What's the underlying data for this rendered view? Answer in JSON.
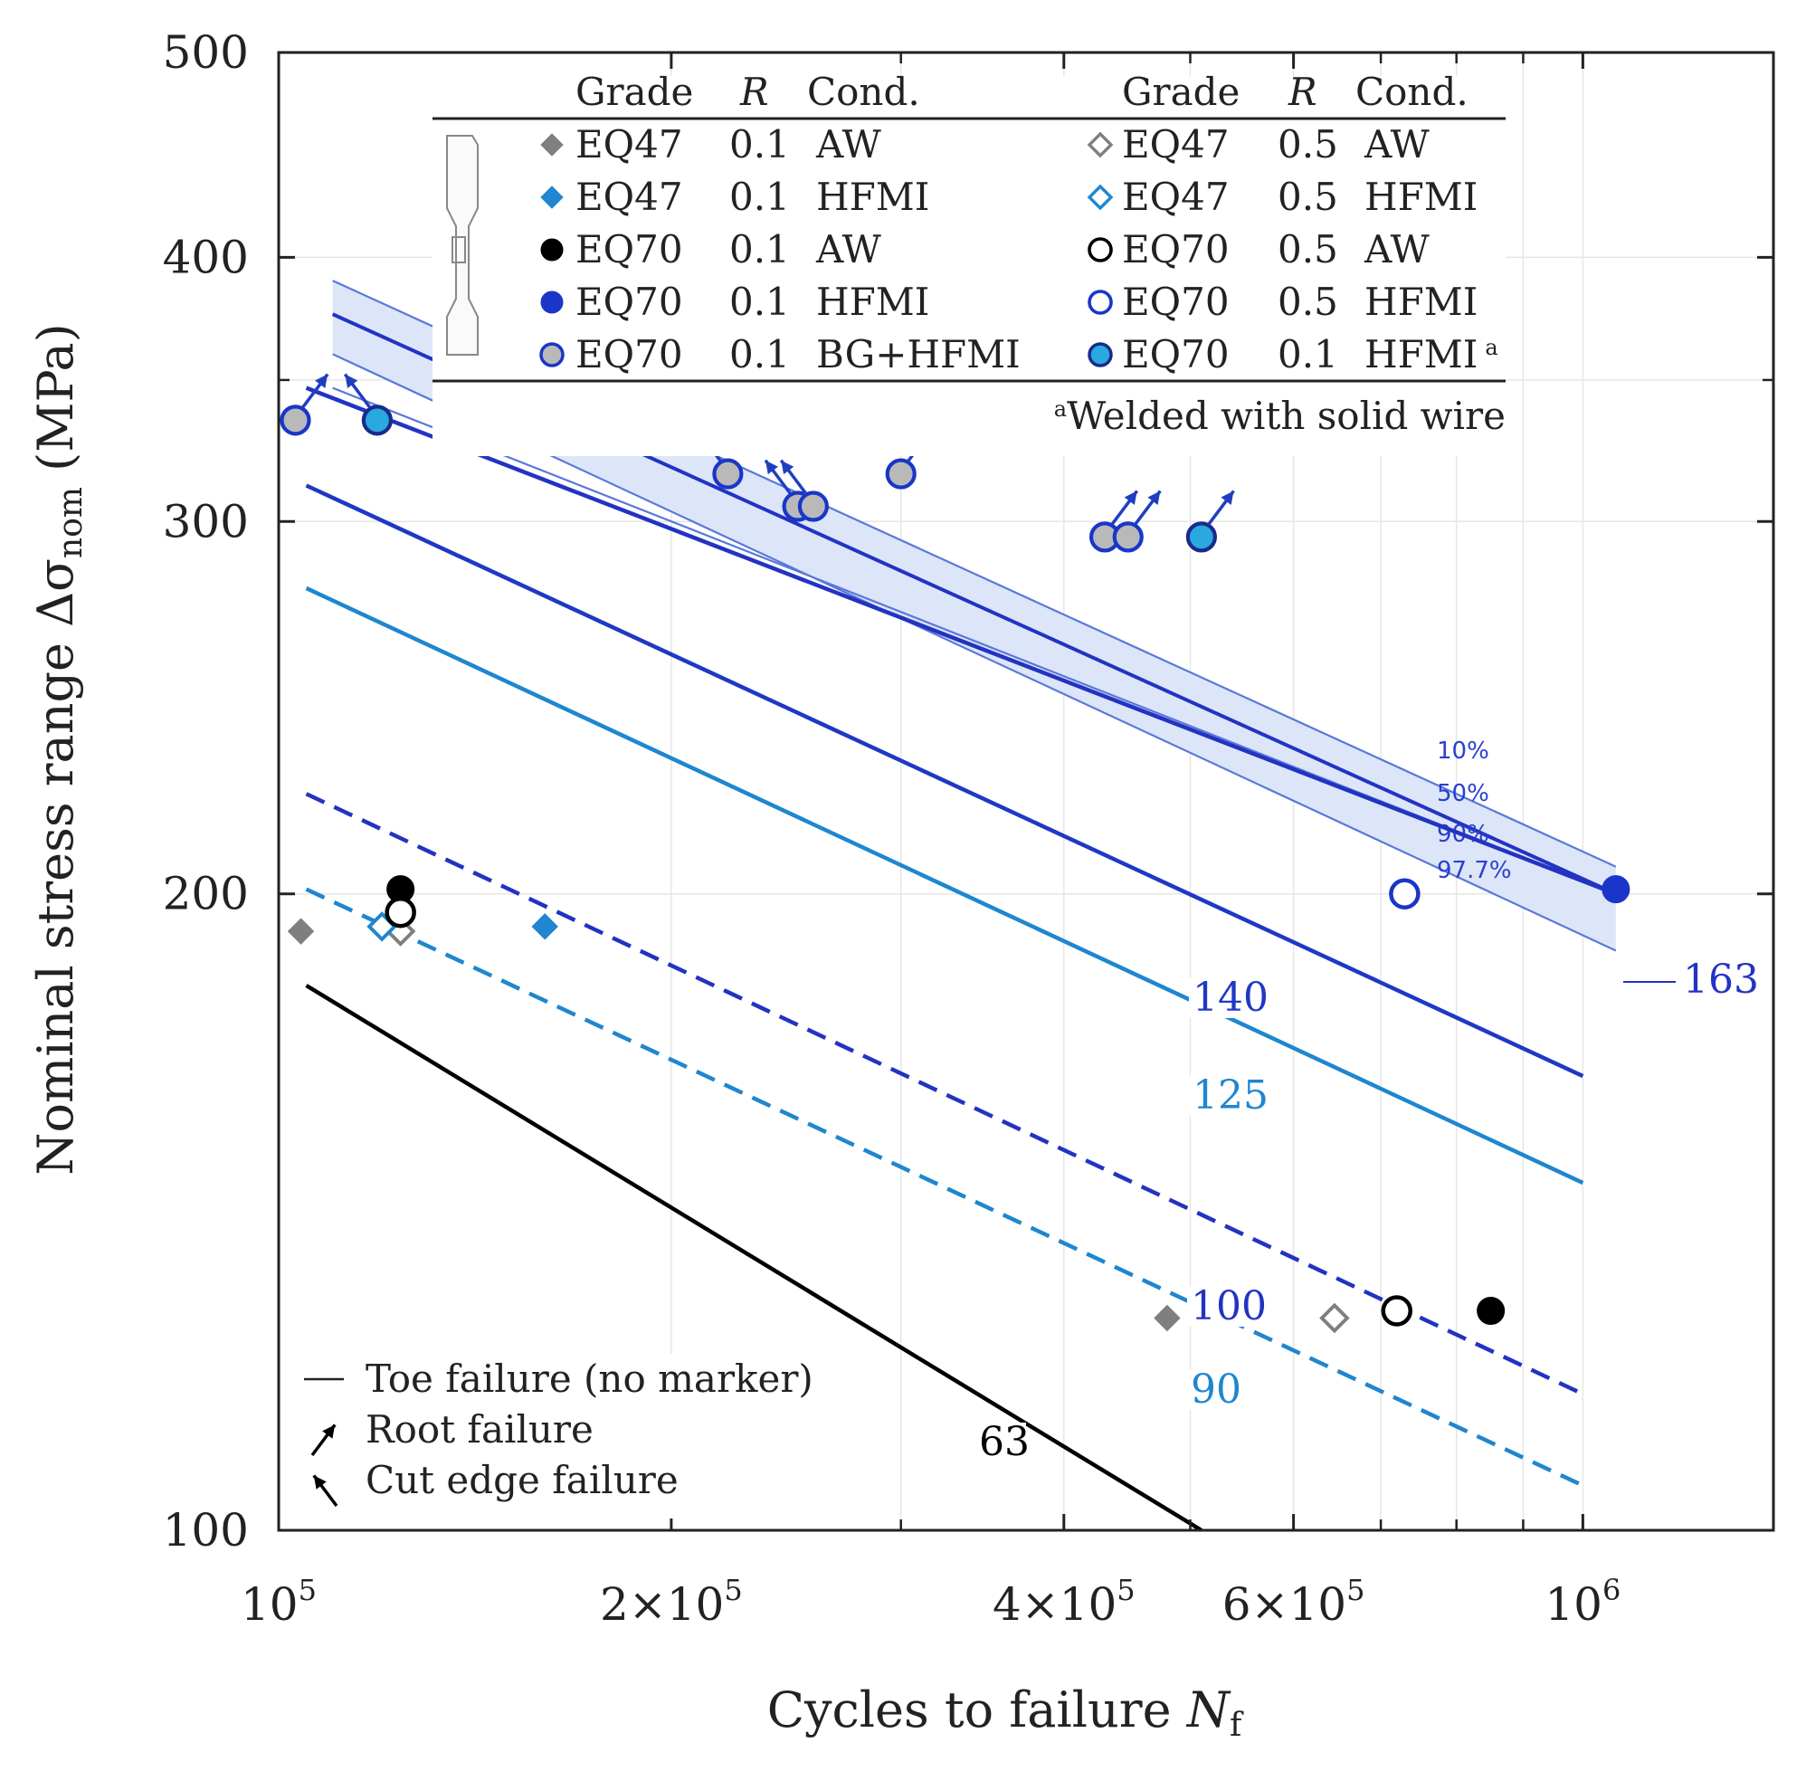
{
  "chart_data": {
    "type": "scatter",
    "x_scale": "log",
    "y_scale": "log",
    "xlim": [
      100000,
      1400000
    ],
    "ylim": [
      100,
      500
    ],
    "xlabel": "Cycles to failure",
    "xlabel_symbol": "N",
    "xlabel_sub": "f",
    "ylabel": "Nominal stress range Δσ",
    "ylabel_sub": "nom",
    "ylabel_unit": "(MPa)",
    "x_ticks": [
      {
        "value": 100000,
        "mantissa": "",
        "base": "10",
        "exp": "5"
      },
      {
        "value": 200000,
        "mantissa": "2×",
        "base": "10",
        "exp": "5"
      },
      {
        "value": 400000,
        "mantissa": "4×",
        "base": "10",
        "exp": "5"
      },
      {
        "value": 600000,
        "mantissa": "6×",
        "base": "10",
        "exp": "5"
      },
      {
        "value": 1000000,
        "mantissa": "",
        "base": "10",
        "exp": "6"
      }
    ],
    "x_minor_ticks": [
      300000,
      500000,
      700000,
      800000,
      900000
    ],
    "y_ticks": [
      {
        "value": 500,
        "label": "500"
      },
      {
        "value": 400,
        "label": "400"
      },
      {
        "value": 300,
        "label": "300"
      },
      {
        "value": 200,
        "label": "200"
      },
      {
        "value": 100,
        "label": "100"
      }
    ],
    "y_minor_ticks": [
      350
    ],
    "grid": true,
    "colors": {
      "fat163": "#2233c2",
      "fat140": "#1f38c4",
      "fat125": "#1f86cf",
      "fat100": "#2233c2",
      "fat90": "#1f86cf",
      "fat63": "#000000",
      "band": "#dde6f8",
      "band_edge": "#5b78d9",
      "arrow": "#1f3fc0",
      "grey": "#7f7f7f",
      "steel_blue": "#1f86cf",
      "navy": "#1a36c8",
      "cyan": "#2aa8e0"
    },
    "sn_lines": [
      {
        "label": "163",
        "color_key": "fat163",
        "dash": false,
        "points": [
          [
            105000,
            347
          ],
          [
            1060000,
            200
          ]
        ]
      },
      {
        "label": "140",
        "color_key": "fat140",
        "dash": false,
        "points": [
          [
            105000,
            312
          ],
          [
            1000000,
            164
          ]
        ]
      },
      {
        "label": "125",
        "color_key": "fat125",
        "dash": false,
        "points": [
          [
            105000,
            279
          ],
          [
            1000000,
            146
          ]
        ]
      },
      {
        "label": "100",
        "color_key": "fat100",
        "dash": true,
        "points": [
          [
            105000,
            223
          ],
          [
            1000000,
            116
          ]
        ]
      },
      {
        "label": "90",
        "color_key": "fat90",
        "dash": true,
        "points": [
          [
            105000,
            201
          ],
          [
            1000000,
            105
          ]
        ]
      },
      {
        "label": "63",
        "color_key": "fat63",
        "dash": false,
        "points": [
          [
            105000,
            181
          ],
          [
            510000,
            100
          ]
        ]
      }
    ],
    "scatter_band": {
      "upper": [
        [
          110000,
          390
        ],
        [
          1060000,
          206
        ]
      ],
      "lower": [
        [
          110000,
          360
        ],
        [
          1060000,
          188
        ]
      ],
      "lines": [
        {
          "label": "10%",
          "points": [
            [
              110000,
              390
            ],
            [
              1060000,
              206
            ]
          ]
        },
        {
          "label": "50%",
          "points": [
            [
              110000,
              376
            ],
            [
              1060000,
              200
            ]
          ]
        },
        {
          "label": "90%",
          "points": [
            [
              110000,
              360
            ],
            [
              1060000,
              188
            ]
          ]
        },
        {
          "label": "97.7%",
          "points": [
            [
              110000,
              347
            ],
            [
              1060000,
              200
            ]
          ]
        }
      ],
      "percent_labels": [
        "10%",
        "50%",
        "90%",
        "97.7%"
      ]
    },
    "series": [
      {
        "grade": "EQ47",
        "R": "0.1",
        "cond": "AW",
        "marker": "diamond",
        "fill": "grey",
        "points": [
          [
            104000,
            192
          ],
          [
            480000,
            126
          ]
        ]
      },
      {
        "grade": "EQ47",
        "R": "0.1",
        "cond": "HFMI",
        "marker": "diamond",
        "fill": "steel_blue",
        "points": [
          [
            160000,
            193
          ]
        ]
      },
      {
        "grade": "EQ70",
        "R": "0.1",
        "cond": "AW",
        "marker": "circle",
        "fill": "black",
        "points": [
          [
            124000,
            201
          ],
          [
            850000,
            127
          ]
        ]
      },
      {
        "grade": "EQ70",
        "R": "0.1",
        "cond": "HFMI",
        "marker": "circle",
        "fill": "navy",
        "points": [
          [
            1060000,
            201
          ]
        ]
      },
      {
        "grade": "EQ70",
        "R": "0.1",
        "cond": "BG+HFMI",
        "marker": "circle",
        "fill": "grey_ring",
        "points": [
          [
            103000,
            335
          ],
          [
            221000,
            316
          ],
          [
            300000,
            316
          ],
          [
            250000,
            305
          ],
          [
            257000,
            305
          ],
          [
            430000,
            295
          ],
          [
            448000,
            295
          ]
        ]
      },
      {
        "grade": "EQ47",
        "R": "0.5",
        "cond": "AW",
        "marker": "diamond_open",
        "fill": "grey",
        "points": [
          [
            124000,
            192
          ],
          [
            645000,
            126
          ]
        ]
      },
      {
        "grade": "EQ47",
        "R": "0.5",
        "cond": "HFMI",
        "marker": "diamond_open",
        "fill": "steel_blue",
        "points": [
          [
            120000,
            193
          ]
        ]
      },
      {
        "grade": "EQ70",
        "R": "0.5",
        "cond": "AW",
        "marker": "circle_open",
        "fill": "black",
        "points": [
          [
            124000,
            196
          ],
          [
            720000,
            127
          ]
        ]
      },
      {
        "grade": "EQ70",
        "R": "0.5",
        "cond": "HFMI",
        "marker": "circle_open",
        "fill": "navy",
        "points": [
          [
            730000,
            200
          ]
        ]
      },
      {
        "grade": "EQ70",
        "R": "0.1",
        "cond": "HFMI",
        "footnote": "a",
        "marker": "circle",
        "fill": "cyan_ring",
        "points": [
          [
            119000,
            335
          ],
          [
            510000,
            295
          ]
        ]
      }
    ],
    "failure_arrows": [
      {
        "x": 103000,
        "y": 335,
        "kind": "root"
      },
      {
        "x": 119000,
        "y": 335,
        "kind": "cut"
      },
      {
        "x": 221000,
        "y": 316,
        "kind": "cut"
      },
      {
        "x": 300000,
        "y": 316,
        "kind": "root"
      },
      {
        "x": 250000,
        "y": 305,
        "kind": "cut"
      },
      {
        "x": 257000,
        "y": 305,
        "kind": "cut"
      },
      {
        "x": 430000,
        "y": 295,
        "kind": "root"
      },
      {
        "x": 448000,
        "y": 295,
        "kind": "root"
      },
      {
        "x": 510000,
        "y": 295,
        "kind": "root"
      }
    ]
  },
  "legend": {
    "headers": {
      "grade": "Grade",
      "r": "R",
      "cond": "Cond."
    },
    "rows_left": [
      {
        "grade": "EQ47",
        "r": "0.1",
        "cond": "AW",
        "marker": "diamond",
        "fill": "grey"
      },
      {
        "grade": "EQ47",
        "r": "0.1",
        "cond": "HFMI",
        "marker": "diamond",
        "fill": "steel_blue"
      },
      {
        "grade": "EQ70",
        "r": "0.1",
        "cond": "AW",
        "marker": "circle",
        "fill": "black"
      },
      {
        "grade": "EQ70",
        "r": "0.1",
        "cond": "HFMI",
        "marker": "circle",
        "fill": "navy"
      },
      {
        "grade": "EQ70",
        "r": "0.1",
        "cond": "BG+HFMI",
        "marker": "circle",
        "fill": "grey_ring"
      }
    ],
    "rows_right": [
      {
        "grade": "EQ47",
        "r": "0.5",
        "cond": "AW",
        "marker": "diamond_open",
        "fill": "grey"
      },
      {
        "grade": "EQ47",
        "r": "0.5",
        "cond": "HFMI",
        "marker": "diamond_open",
        "fill": "steel_blue"
      },
      {
        "grade": "EQ70",
        "r": "0.5",
        "cond": "AW",
        "marker": "circle_open",
        "fill": "black"
      },
      {
        "grade": "EQ70",
        "r": "0.5",
        "cond": "HFMI",
        "marker": "circle_open",
        "fill": "navy"
      },
      {
        "grade": "EQ70",
        "r": "0.1",
        "cond": "HFMI",
        "sup": "a",
        "marker": "circle",
        "fill": "cyan_ring"
      }
    ],
    "footnote_mark": "a",
    "footnote_text": "Welded with solid wire",
    "failure_key": [
      {
        "kind": "toe",
        "label": "Toe failure (no marker)"
      },
      {
        "kind": "root",
        "label": "Root failure"
      },
      {
        "kind": "cut",
        "label": "Cut edge failure"
      }
    ]
  }
}
